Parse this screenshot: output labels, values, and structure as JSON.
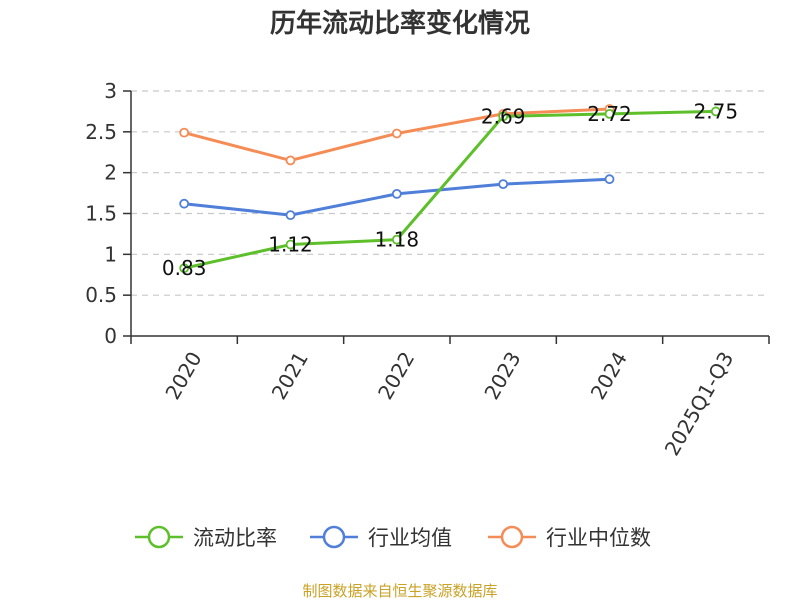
{
  "chart_data": {
    "type": "line",
    "title": "历年流动比率变化情况",
    "categories": [
      "2020",
      "2021",
      "2022",
      "2023",
      "2024",
      "2025Q1-Q3"
    ],
    "ylim": [
      0,
      3
    ],
    "yticks": [
      "0",
      "0.5",
      "1",
      "1.5",
      "2",
      "2.5",
      "3"
    ],
    "grid": true,
    "legend_position": "bottom",
    "series": [
      {
        "name": "流动比率",
        "color": "#5dbf2a",
        "values": [
          0.83,
          1.12,
          1.18,
          2.69,
          2.72,
          2.75
        ],
        "labels": [
          "0.83",
          "1.12",
          "1.18",
          "2.69",
          "2.72",
          "2.75"
        ]
      },
      {
        "name": "行业均值",
        "color": "#4f7fd8",
        "values": [
          1.62,
          1.48,
          1.74,
          1.86,
          1.92,
          null
        ]
      },
      {
        "name": "行业中位数",
        "color": "#f58c55",
        "values": [
          2.49,
          2.15,
          2.48,
          2.72,
          2.78,
          null
        ]
      }
    ]
  },
  "source": "制图数据来自恒生聚源数据库"
}
